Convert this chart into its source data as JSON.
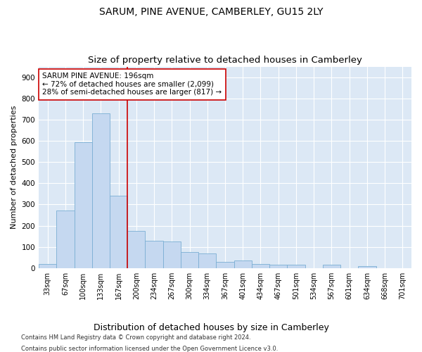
{
  "title": "SARUM, PINE AVENUE, CAMBERLEY, GU15 2LY",
  "subtitle": "Size of property relative to detached houses in Camberley",
  "xlabel": "Distribution of detached houses by size in Camberley",
  "ylabel": "Number of detached properties",
  "categories": [
    "33sqm",
    "67sqm",
    "100sqm",
    "133sqm",
    "167sqm",
    "200sqm",
    "234sqm",
    "267sqm",
    "300sqm",
    "334sqm",
    "367sqm",
    "401sqm",
    "434sqm",
    "467sqm",
    "501sqm",
    "534sqm",
    "567sqm",
    "601sqm",
    "634sqm",
    "668sqm",
    "701sqm"
  ],
  "values": [
    20,
    270,
    595,
    730,
    340,
    175,
    130,
    125,
    75,
    70,
    30,
    35,
    20,
    15,
    15,
    0,
    15,
    0,
    10,
    0,
    0
  ],
  "bar_color": "#c5d8f0",
  "bar_edge_color": "#7bafd4",
  "vline_x": 4.5,
  "vline_color": "#cc0000",
  "annotation_text": "SARUM PINE AVENUE: 196sqm\n← 72% of detached houses are smaller (2,099)\n28% of semi-detached houses are larger (817) →",
  "annotation_box_color": "#ffffff",
  "annotation_box_edge": "#cc0000",
  "ylim": [
    0,
    950
  ],
  "yticks": [
    0,
    100,
    200,
    300,
    400,
    500,
    600,
    700,
    800,
    900
  ],
  "background_color": "#dce8f5",
  "footer_line1": "Contains HM Land Registry data © Crown copyright and database right 2024.",
  "footer_line2": "Contains public sector information licensed under the Open Government Licence v3.0.",
  "title_fontsize": 10,
  "subtitle_fontsize": 9.5,
  "xlabel_fontsize": 9,
  "ylabel_fontsize": 8,
  "annotation_fontsize": 7.5,
  "tick_fontsize": 7,
  "ytick_fontsize": 7.5
}
